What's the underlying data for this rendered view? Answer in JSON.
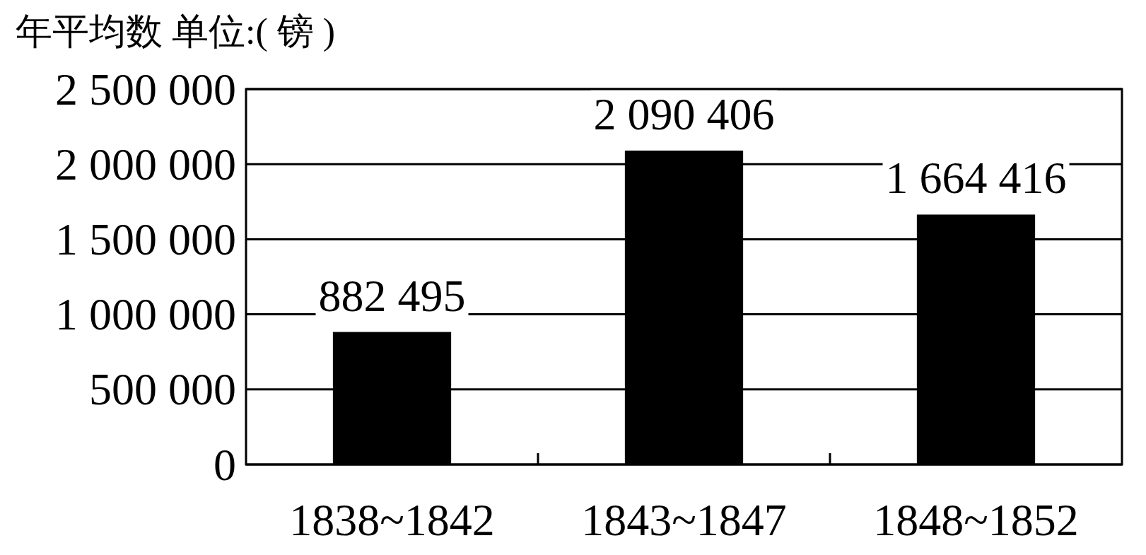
{
  "chart_data": {
    "type": "bar",
    "title": "年平均数 单位:( 镑 )",
    "categories": [
      "1838~1842",
      "1843~1847",
      "1848~1852"
    ],
    "values": [
      882495,
      2090406,
      1664416
    ],
    "value_labels": [
      "882 495",
      "2 090 406",
      "1 664 416"
    ],
    "color": "#000000",
    "ylim": [
      0,
      2500000
    ],
    "yticks": [
      {
        "value": 0,
        "label": "0"
      },
      {
        "value": 500000,
        "label": "500 000"
      },
      {
        "value": 1000000,
        "label": "1 000 000"
      },
      {
        "value": 1500000,
        "label": "1 500 000"
      },
      {
        "value": 2000000,
        "label": "2 000 000"
      },
      {
        "value": 2500000,
        "label": "2 500 000"
      }
    ],
    "grid": "y"
  }
}
